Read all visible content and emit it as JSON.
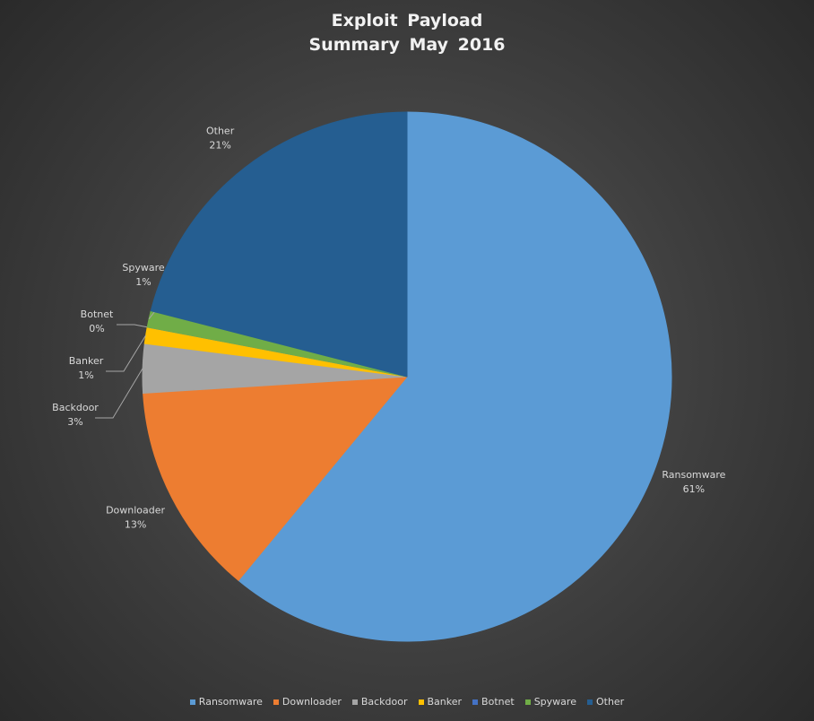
{
  "chart_data": {
    "type": "pie",
    "title": "Exploit Payload Summary May 2016",
    "categories": [
      "Ransomware",
      "Downloader",
      "Backdoor",
      "Banker",
      "Botnet",
      "Spyware",
      "Other"
    ],
    "values": [
      61,
      13,
      3,
      1,
      0,
      1,
      21
    ],
    "value_labels": [
      "61%",
      "13%",
      "3%",
      "1%",
      "0%",
      "1%",
      "21%"
    ],
    "colors": [
      "#5b9bd5",
      "#ed7d31",
      "#a5a5a5",
      "#ffc000",
      "#4472c4",
      "#70ad47",
      "#255e91"
    ],
    "legend": "bottom"
  }
}
